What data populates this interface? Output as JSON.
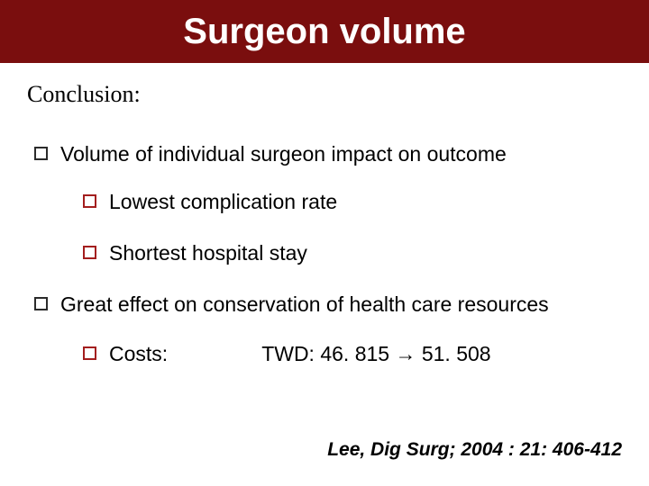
{
  "colors": {
    "title_bg": "#7a0e0e",
    "title_text": "#ffffff",
    "heading_text": "#000000",
    "body_text": "#000000",
    "square_black": "#2b2b2b",
    "square_red": "#a31e1e"
  },
  "title": "Surgeon volume",
  "heading": "Conclusion:",
  "bullets": [
    {
      "text": "Volume of individual surgeon impact on outcome",
      "children": [
        {
          "text": "Lowest complication rate"
        },
        {
          "text": "Shortest hospital stay"
        }
      ]
    },
    {
      "text": "Great effect on conservation of health care resources",
      "children": [
        {
          "label": "Costs:",
          "value": "TWD: 46. 815 → 51. 508"
        }
      ]
    }
  ],
  "citation": "Lee, Dig Surg; 2004 : 21: 406-412"
}
